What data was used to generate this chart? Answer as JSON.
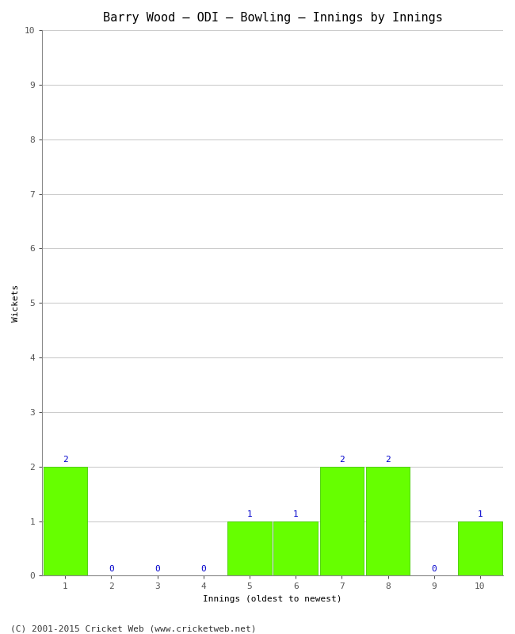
{
  "title": "Barry Wood – ODI – Bowling – Innings by Innings",
  "xlabel": "Innings (oldest to newest)",
  "ylabel": "Wickets",
  "categories": [
    1,
    2,
    3,
    4,
    5,
    6,
    7,
    8,
    9,
    10
  ],
  "values": [
    2,
    0,
    0,
    0,
    1,
    1,
    2,
    2,
    0,
    1
  ],
  "bar_color": "#66ff00",
  "bar_edge_color": "#44cc00",
  "ylim": [
    0,
    10
  ],
  "yticks": [
    0,
    1,
    2,
    3,
    4,
    5,
    6,
    7,
    8,
    9,
    10
  ],
  "background_color": "#ffffff",
  "plot_bg_color": "#ffffff",
  "label_color": "#0000cc",
  "footer": "(C) 2001-2015 Cricket Web (www.cricketweb.net)",
  "title_fontsize": 11,
  "label_fontsize": 8,
  "footer_fontsize": 8,
  "axis_label_fontsize": 8,
  "tick_fontsize": 8
}
